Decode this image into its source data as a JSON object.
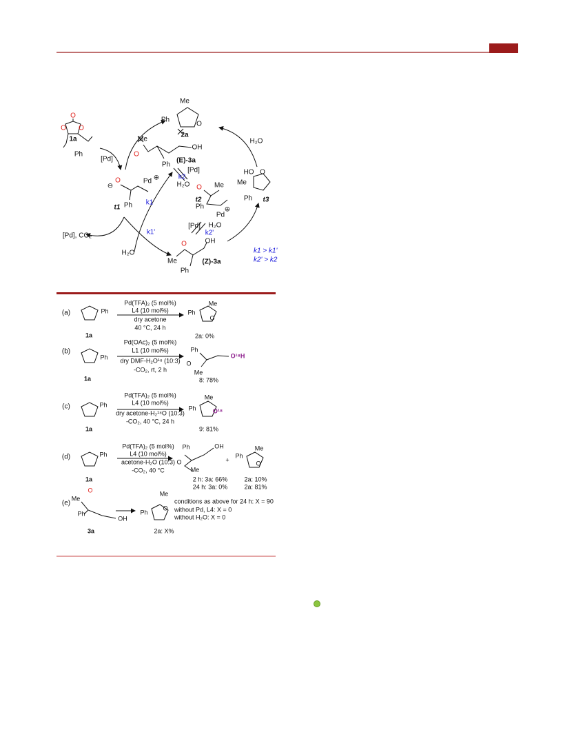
{
  "cycle": [
    "Me",
    "Ph",
    "O",
    "2a",
    "O",
    "O",
    "O",
    "1a",
    "Ph",
    "[Pd]",
    "Me",
    "O",
    "OH",
    "Ph",
    "(E)-3a",
    "⊖",
    "O",
    "Pd",
    "⊕",
    "Ph",
    "t1",
    "k1",
    "k1'",
    "[Pd], CO₂",
    "H₂O",
    "[Pd]",
    "k2",
    "H₂O",
    "O",
    "Me",
    "t2",
    "Ph",
    "Pd",
    "⊕",
    "[Pd]",
    "H₂O",
    "k2'",
    "O",
    "OH",
    "Me",
    "(Z)-3a",
    "Ph",
    "HO",
    "O",
    "Me",
    "Ph",
    "t3",
    "H₂O",
    "k1 > k1'",
    "k2' > k2"
  ],
  "scheme": [
    {
      "label": "(a)",
      "conditions": [
        "Pd(TFA)₂ (5 mol%)",
        "L4 (10 mol%)",
        "dry acetone",
        "40 °C, 24 h"
      ],
      "texts": [
        "1a",
        "Ph",
        "Ph",
        "Me",
        "O",
        "2a: 0%"
      ]
    },
    {
      "label": "(b)",
      "conditions": [
        "Pd(OAc)₂ (5 mol%)",
        "L1 (10 mol%)",
        "dry DMF-H₂O¹⁸ (10:3)",
        "-CO₂, rt, 2 h"
      ],
      "texts": [
        "1a",
        "Ph",
        "Ph",
        "O¹⁸H",
        "O",
        "Me",
        "8: 78%"
      ]
    },
    {
      "label": "(c)",
      "conditions": [
        "Pd(TFA)₂ (5 mol%)",
        "L4 (10 mol%)",
        "dry acetone-H₂¹⁸O (10:3)",
        "-CO₂, 40 °C, 24 h"
      ],
      "texts": [
        "1a",
        "Ph",
        "Ph",
        "Me",
        "O¹⁸",
        "9: 81%"
      ]
    },
    {
      "label": "(d)",
      "conditions": [
        "Pd(TFA)₂ (5 mol%)",
        "L4 (10 mol%)",
        "acetone-H₂O (10:3)",
        "-CO₂, 40 °C"
      ],
      "texts": [
        "1a",
        "Ph",
        "Ph",
        "OH",
        "O",
        "Me",
        "+",
        "Ph",
        "Me",
        "O",
        "2 h: 3a: 66%",
        "24 h: 3a: 0%",
        "2a: 10%",
        "2a: 81%"
      ]
    },
    {
      "label": "(e)",
      "conditions": [
        "conditions as above for 24 h: X = 90",
        "without Pd, L4: X = 0",
        "without H₂O: X = 0"
      ],
      "texts": [
        "Me",
        "O",
        "Ph",
        "OH",
        "3a",
        "Ph",
        "Me",
        "O",
        "2a: X%"
      ]
    }
  ]
}
